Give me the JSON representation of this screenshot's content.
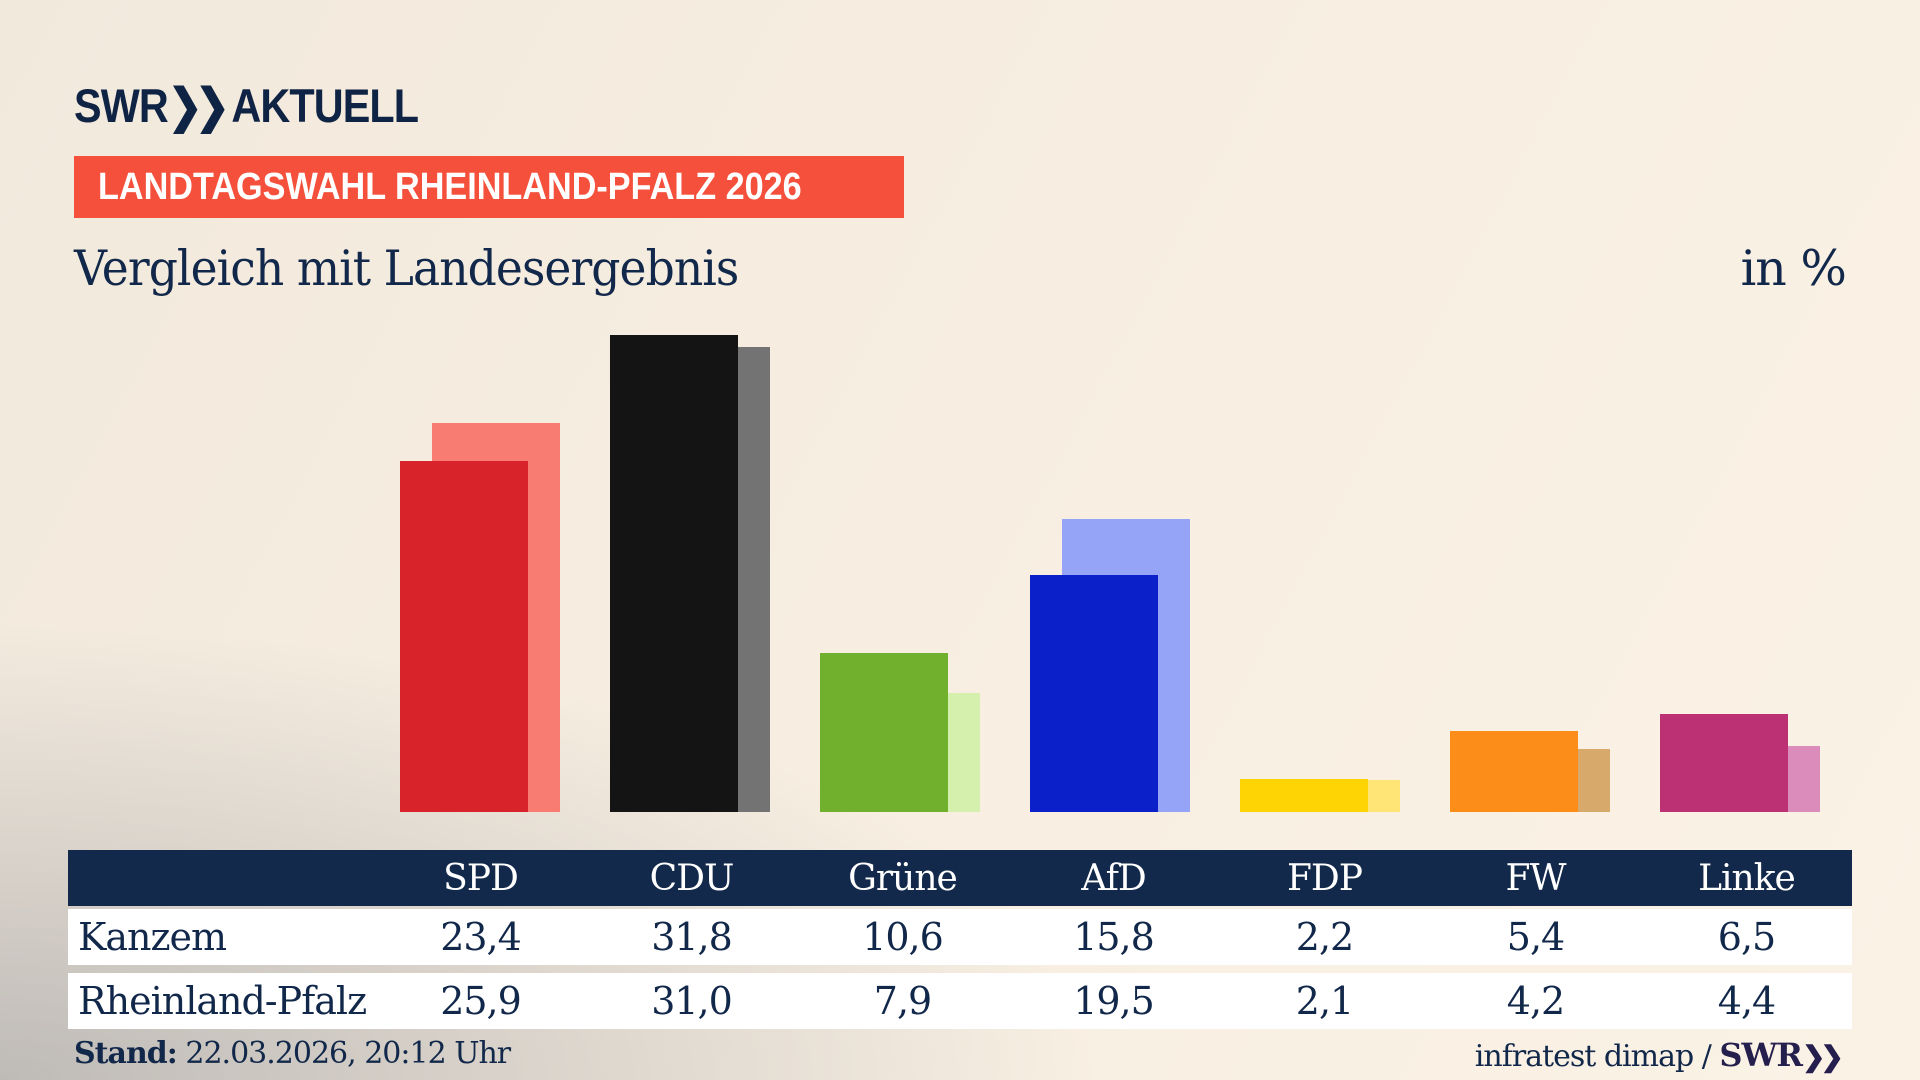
{
  "header": {
    "logo": {
      "brand": "SWR",
      "chevrons": "❯❯",
      "suffix": "AKTUELL"
    },
    "badge": "LANDTAGSWAHL RHEINLAND-PFALZ 2026",
    "title": "Vergleich mit Landesergebnis",
    "unit_label": "in %"
  },
  "chart_data": {
    "type": "bar",
    "title": "Vergleich mit Landesergebnis",
    "unit": "%",
    "categories": [
      "SPD",
      "CDU",
      "Grüne",
      "AfD",
      "FDP",
      "FW",
      "Linke"
    ],
    "series": [
      {
        "name": "Kanzem",
        "values": [
          23.4,
          31.8,
          10.6,
          15.8,
          2.2,
          5.4,
          6.5
        ],
        "colors": [
          "#d8232a",
          "#141414",
          "#70b02c",
          "#0b20c8",
          "#ffd404",
          "#fb8d18",
          "#bb3173"
        ]
      },
      {
        "name": "Rheinland-Pfalz",
        "values": [
          25.9,
          31.0,
          7.9,
          19.5,
          2.1,
          4.2,
          4.4
        ],
        "colors": [
          "#f97c72",
          "#737373",
          "#d5efad",
          "#95a4f6",
          "#ffe476",
          "#d7a96a",
          "#dc8cbb"
        ]
      }
    ],
    "ylim": [
      0,
      33
    ],
    "grid": false,
    "legend": "table-below"
  },
  "table": {
    "columns": [
      "SPD",
      "CDU",
      "Grüne",
      "AfD",
      "FDP",
      "FW",
      "Linke"
    ],
    "rows": [
      {
        "label": "Kanzem",
        "values": [
          "23,4",
          "31,8",
          "10,6",
          "15,8",
          "2,2",
          "5,4",
          "6,5"
        ]
      },
      {
        "label": "Rheinland-Pfalz",
        "values": [
          "25,9",
          "31,0",
          "7,9",
          "19,5",
          "2,1",
          "4,2",
          "4,4"
        ]
      }
    ]
  },
  "footer": {
    "stand_label": "Stand:",
    "stand_value": " 22.03.2026, 20:12 Uhr",
    "source_text": "infratest dimap / ",
    "source_brand": "SWR",
    "source_chevrons": "❯❯"
  },
  "colors": {
    "navy": "#12284a",
    "badge_red": "#f4503c",
    "table_header_bg": "#13294b",
    "row_bg": "#ffffff",
    "background_cream": "#f8efe2",
    "background_gray": "#cfcdcc"
  }
}
